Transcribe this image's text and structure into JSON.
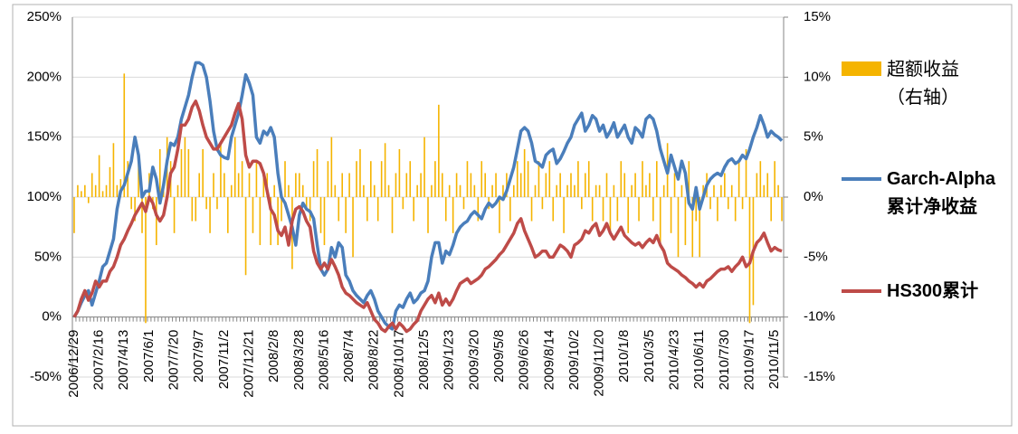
{
  "chart_data": {
    "type": "combo",
    "categories": [
      "2006/12/29",
      null,
      null,
      null,
      null,
      null,
      null,
      "2007/2/16",
      null,
      null,
      null,
      null,
      null,
      null,
      "2007/4/13",
      null,
      null,
      null,
      null,
      null,
      null,
      "2007/6/1",
      null,
      null,
      null,
      null,
      null,
      null,
      "2007/7/20",
      null,
      null,
      null,
      null,
      null,
      null,
      "2007/9/7",
      null,
      null,
      null,
      null,
      null,
      null,
      "2007/11/2",
      null,
      null,
      null,
      null,
      null,
      null,
      "2007/12/21",
      null,
      null,
      null,
      null,
      null,
      null,
      "2008/2/8",
      null,
      null,
      null,
      null,
      null,
      null,
      "2008/3/28",
      null,
      null,
      null,
      null,
      null,
      null,
      "2008/5/16",
      null,
      null,
      null,
      null,
      null,
      null,
      "2008/7/4",
      null,
      null,
      null,
      null,
      null,
      null,
      "2008/8/22",
      null,
      null,
      null,
      null,
      null,
      null,
      "2008/10/17",
      null,
      null,
      null,
      null,
      null,
      null,
      "2008/12/5",
      null,
      null,
      null,
      null,
      null,
      null,
      "2009/1/23",
      null,
      null,
      null,
      null,
      null,
      null,
      "2009/3/20",
      null,
      null,
      null,
      null,
      null,
      null,
      "2009/5/8",
      null,
      null,
      null,
      null,
      null,
      null,
      "2009/6/26",
      null,
      null,
      null,
      null,
      null,
      null,
      "2009/8/14",
      null,
      null,
      null,
      null,
      null,
      null,
      "2009/10/2",
      null,
      null,
      null,
      null,
      null,
      null,
      "2009/11/20",
      null,
      null,
      null,
      null,
      null,
      null,
      "2010/1/8",
      null,
      null,
      null,
      null,
      null,
      null,
      "2010/3/5",
      null,
      null,
      null,
      null,
      null,
      null,
      "2010/4/23",
      null,
      null,
      null,
      null,
      null,
      null,
      "2010/6/11",
      null,
      null,
      null,
      null,
      null,
      null,
      "2010/7/30",
      null,
      null,
      null,
      null,
      null,
      null,
      "2010/9/17",
      null,
      null,
      null,
      null,
      null,
      null,
      "2010/11/5",
      null,
      null
    ],
    "series": [
      {
        "name": "超额收益（右轴）",
        "type": "bar",
        "axis": "y2",
        "color": "#f5b400",
        "values": [
          -3,
          1,
          0.5,
          1,
          -0.5,
          2,
          1,
          3.5,
          0.5,
          1,
          2.5,
          4.5,
          1,
          1.5,
          10.3,
          3,
          -1,
          -2,
          3,
          -3,
          -10.5,
          2,
          -1,
          -4,
          4,
          1,
          5,
          3,
          -3,
          1,
          4,
          5,
          4,
          -2,
          -2,
          2,
          4,
          -1,
          -3,
          2,
          -1,
          4.5,
          2,
          -3,
          1,
          5,
          2,
          3,
          -6.5,
          2,
          -3,
          3,
          -4,
          2,
          2,
          -4,
          1,
          -4,
          -2,
          3,
          1,
          -6,
          2,
          2,
          1,
          -1,
          -2,
          3,
          4,
          -3,
          -4,
          3,
          5,
          1,
          -2,
          2,
          -3,
          2,
          -5,
          3,
          4,
          1,
          -2,
          3,
          1,
          -2,
          3,
          4.5,
          1,
          -3,
          2,
          4,
          -1,
          2,
          3,
          -2,
          1,
          2,
          5,
          -3,
          1,
          3,
          7.7,
          2,
          -2,
          1,
          -3,
          2,
          1,
          -1,
          3,
          2,
          1,
          -2,
          3,
          2,
          -1,
          1,
          2,
          -3,
          1,
          2,
          -2,
          1,
          3,
          2,
          4,
          3,
          -2,
          1,
          3,
          -1,
          2,
          3,
          -2,
          1,
          2,
          -3,
          1,
          2,
          1,
          3,
          -1,
          2,
          3,
          -2,
          1,
          1,
          -2,
          2,
          -3,
          1,
          -2,
          3,
          2,
          -3,
          1,
          2,
          -2,
          3,
          1,
          2,
          -2,
          3,
          -4,
          1,
          4.5,
          -3,
          2,
          -5,
          1,
          -4,
          3,
          -5,
          -2,
          -5,
          1,
          2,
          -1,
          1,
          -2,
          1,
          2,
          -1,
          1,
          -2,
          3,
          -1,
          4,
          -10.5,
          -9,
          2,
          3,
          1,
          2,
          -2,
          3,
          1,
          -2
        ]
      },
      {
        "name": "Garch-Alpha累计净收益",
        "type": "line",
        "color": "#4a7ebb",
        "values": [
          0,
          5,
          12,
          18,
          22,
          10,
          20,
          30,
          42,
          45,
          55,
          65,
          90,
          105,
          110,
          120,
          130,
          150,
          135,
          100,
          105,
          105,
          125,
          115,
          95,
          110,
          130,
          145,
          143,
          150,
          165,
          175,
          185,
          200,
          212,
          212,
          210,
          200,
          180,
          155,
          140,
          135,
          133,
          132,
          150,
          160,
          170,
          185,
          202,
          195,
          185,
          150,
          145,
          155,
          152,
          158,
          150,
          120,
          100,
          95,
          85,
          75,
          60,
          85,
          95,
          90,
          88,
          82,
          60,
          40,
          35,
          40,
          58,
          50,
          62,
          58,
          35,
          30,
          22,
          18,
          15,
          12,
          18,
          22,
          15,
          5,
          0,
          -5,
          -8,
          -10,
          5,
          10,
          8,
          15,
          20,
          12,
          15,
          20,
          22,
          30,
          50,
          62,
          62,
          45,
          55,
          52,
          60,
          70,
          75,
          78,
          80,
          85,
          88,
          85,
          82,
          90,
          95,
          92,
          95,
          100,
          98,
          105,
          115,
          125,
          140,
          155,
          158,
          155,
          145,
          130,
          128,
          125,
          135,
          138,
          140,
          128,
          132,
          138,
          145,
          150,
          160,
          165,
          170,
          155,
          160,
          168,
          165,
          155,
          160,
          150,
          155,
          162,
          150,
          155,
          160,
          150,
          145,
          158,
          155,
          150,
          165,
          168,
          165,
          155,
          140,
          130,
          120,
          135,
          125,
          115,
          130,
          120,
          95,
          90,
          108,
          90,
          100,
          110,
          115,
          118,
          120,
          118,
          125,
          130,
          132,
          128,
          130,
          135,
          132,
          140,
          150,
          158,
          168,
          160,
          150,
          155,
          152,
          150,
          147
        ]
      },
      {
        "name": "HS300累计",
        "type": "line",
        "color": "#be4b48",
        "values": [
          0,
          5,
          15,
          22,
          14,
          20,
          30,
          25,
          30,
          30,
          38,
          42,
          50,
          60,
          65,
          72,
          78,
          85,
          90,
          95,
          88,
          100,
          95,
          85,
          80,
          85,
          100,
          120,
          125,
          140,
          160,
          160,
          165,
          175,
          180,
          172,
          160,
          150,
          145,
          140,
          140,
          145,
          150,
          155,
          160,
          170,
          178,
          165,
          135,
          125,
          130,
          130,
          128,
          120,
          105,
          90,
          85,
          72,
          68,
          75,
          60,
          80,
          90,
          92,
          88,
          80,
          75,
          55,
          45,
          40,
          45,
          40,
          48,
          42,
          35,
          25,
          20,
          18,
          15,
          12,
          10,
          8,
          12,
          5,
          -2,
          -5,
          -10,
          -12,
          -8,
          -5,
          -10,
          -5,
          -8,
          -12,
          -10,
          -6,
          -3,
          5,
          10,
          15,
          18,
          12,
          20,
          10,
          15,
          10,
          15,
          22,
          28,
          30,
          32,
          28,
          30,
          32,
          35,
          40,
          42,
          45,
          48,
          52,
          55,
          60,
          65,
          70,
          78,
          82,
          72,
          65,
          58,
          50,
          52,
          55,
          55,
          50,
          50,
          55,
          60,
          58,
          55,
          50,
          60,
          62,
          65,
          72,
          70,
          75,
          78,
          68,
          72,
          78,
          70,
          65,
          70,
          75,
          68,
          65,
          62,
          60,
          62,
          58,
          62,
          65,
          62,
          68,
          60,
          55,
          45,
          42,
          40,
          38,
          35,
          33,
          30,
          28,
          25,
          28,
          25,
          30,
          32,
          35,
          38,
          40,
          40,
          42,
          38,
          42,
          45,
          50,
          42,
          45,
          55,
          62,
          65,
          70,
          62,
          55,
          58,
          56,
          55
        ]
      }
    ],
    "ylim": [
      -50,
      250
    ],
    "yticks": [
      {
        "value": -50,
        "label": "-50%"
      },
      {
        "value": 0,
        "label": "0%"
      },
      {
        "value": 50,
        "label": "50%"
      },
      {
        "value": 100,
        "label": "100%"
      },
      {
        "value": 150,
        "label": "150%"
      },
      {
        "value": 200,
        "label": "200%"
      },
      {
        "value": 250,
        "label": "250%"
      }
    ],
    "y2lim": [
      -15,
      15
    ],
    "y2ticks": [
      {
        "value": -15,
        "label": "-15%"
      },
      {
        "value": -10,
        "label": "-10%"
      },
      {
        "value": -5,
        "label": "-5%"
      },
      {
        "value": 0,
        "label": "0%"
      },
      {
        "value": 5,
        "label": "5%"
      },
      {
        "value": 10,
        "label": "10%"
      },
      {
        "value": 15,
        "label": "15%"
      }
    ],
    "grid": true,
    "legend": "right"
  }
}
